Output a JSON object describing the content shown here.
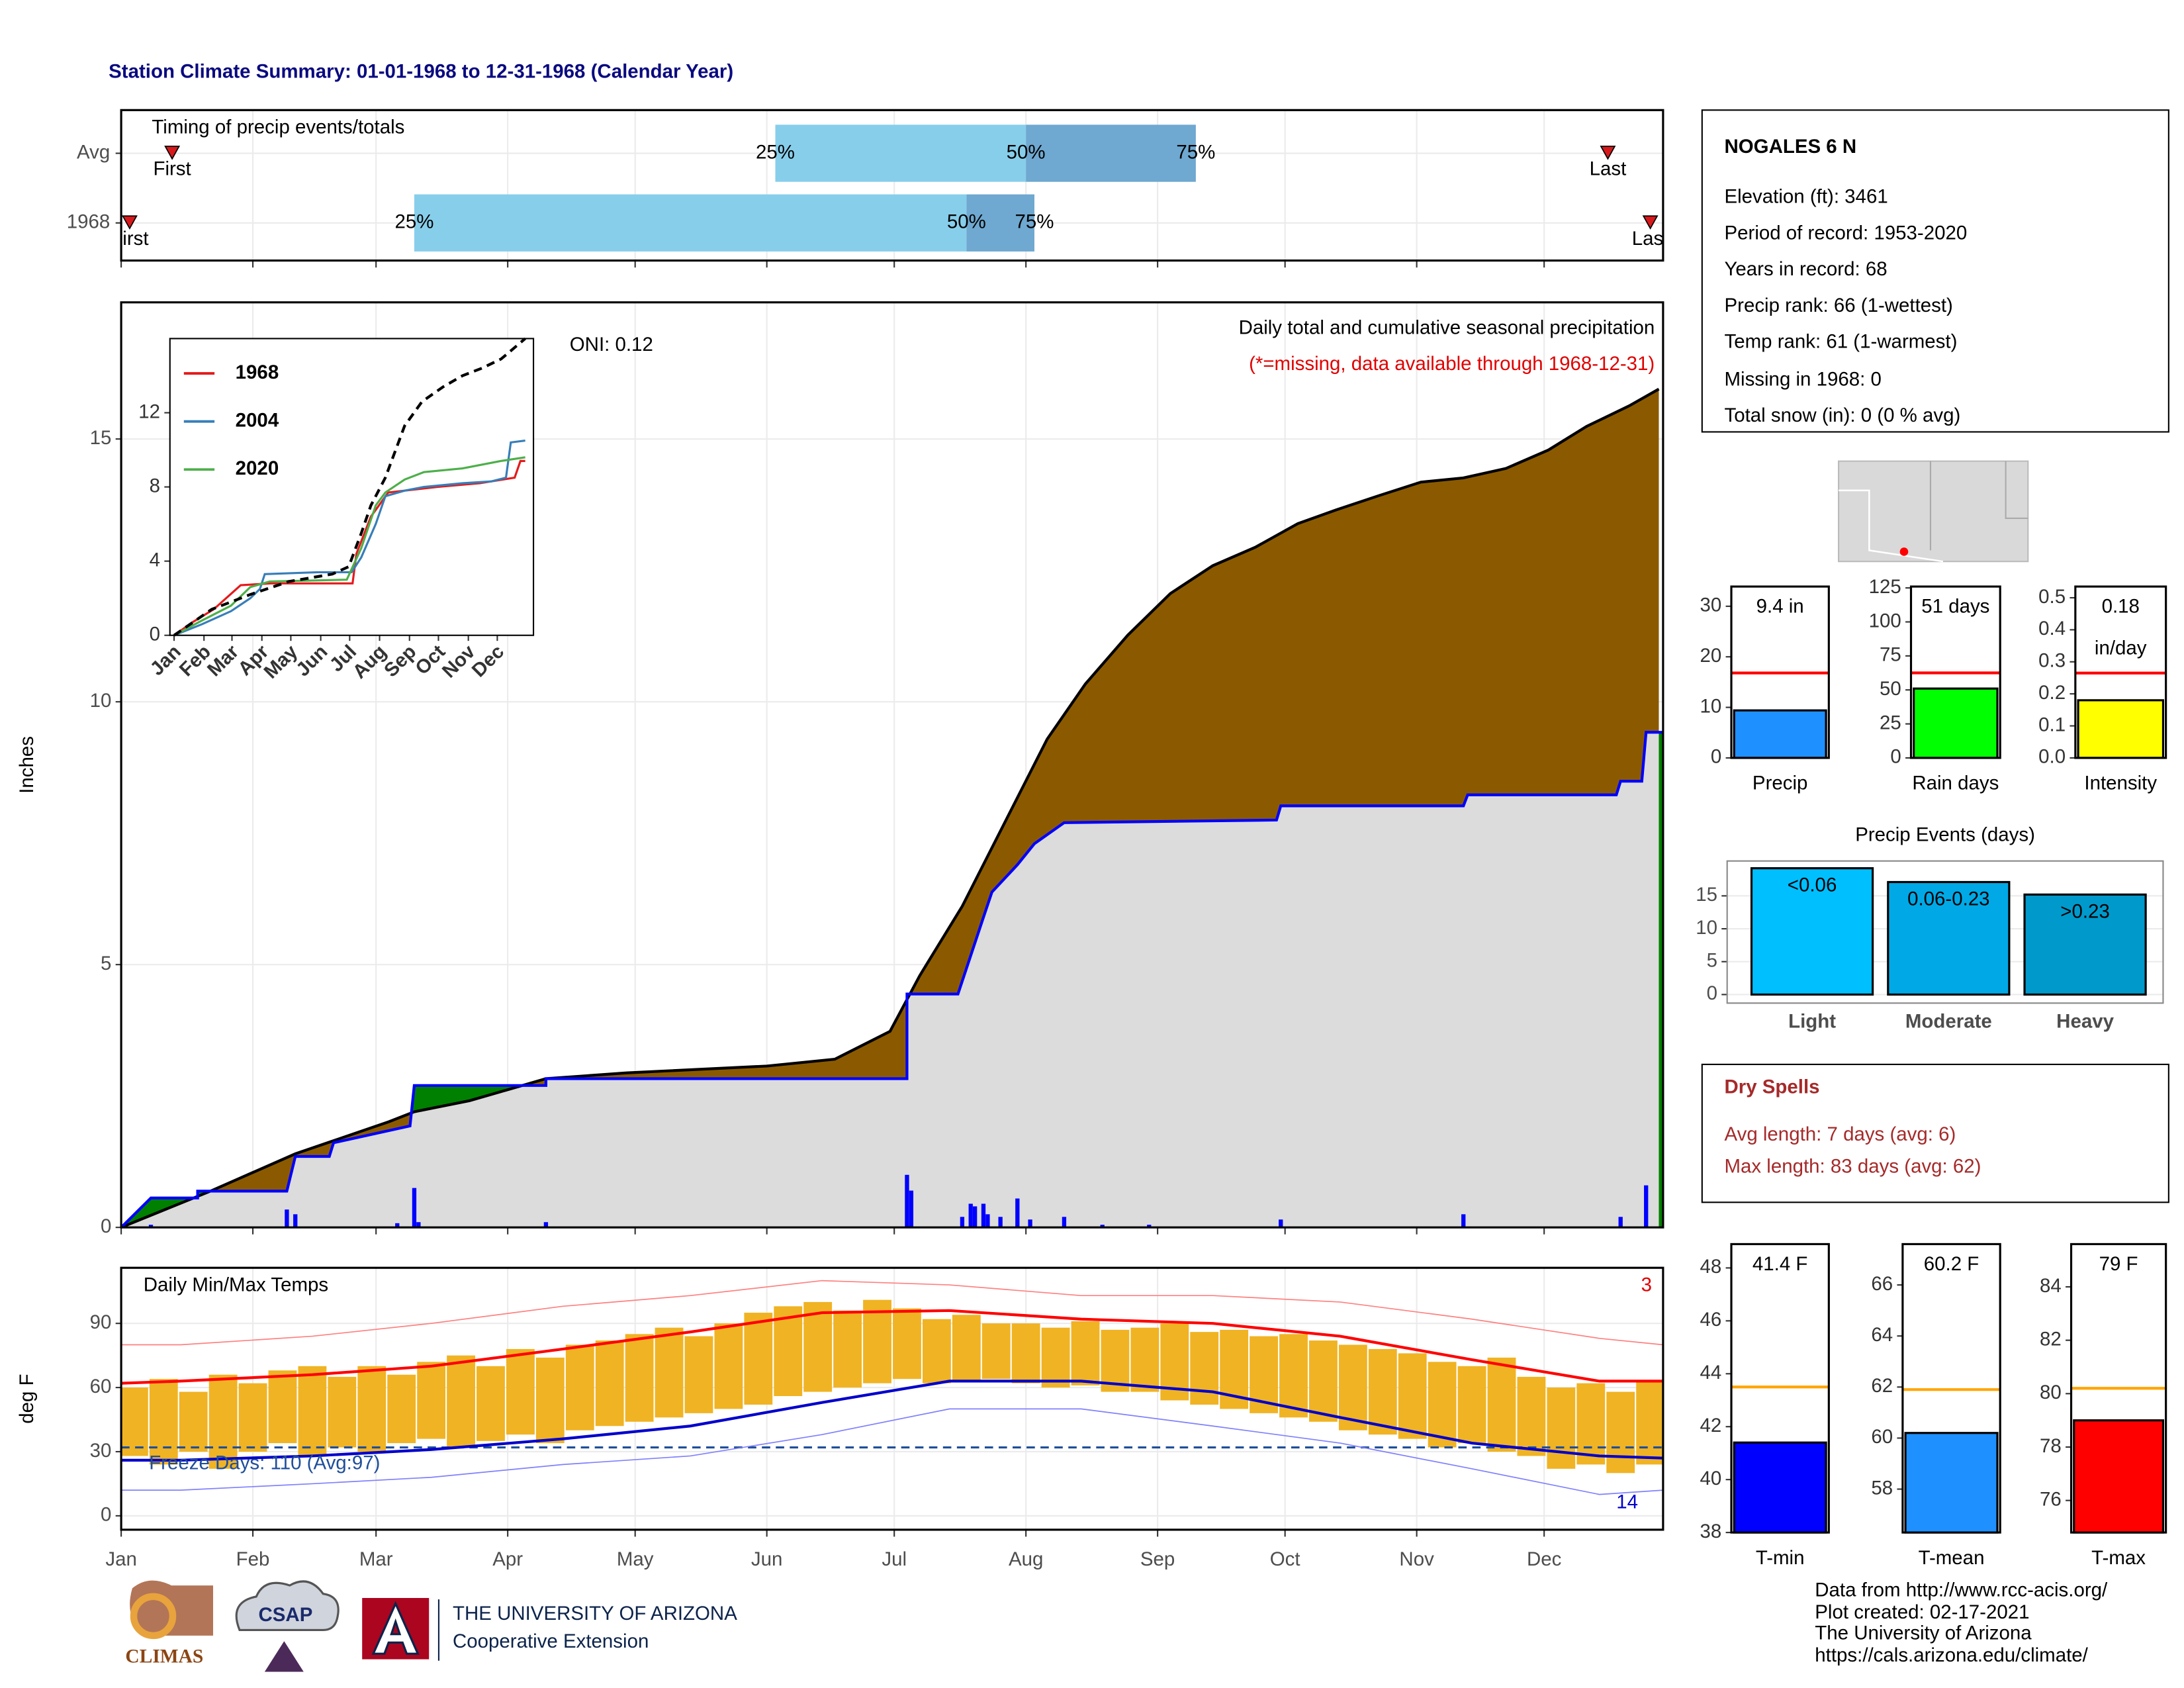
{
  "title": "Station Climate Summary: 01-01-1968 to 12-31-1968 (Calendar Year)",
  "station": {
    "name": "NOGALES 6 N",
    "lines": [
      "Elevation (ft): 3461",
      "Period of record: 1953-2020",
      "Years in record: 68",
      "Precip rank: 66 (1-wettest)",
      "Temp rank: 61 (1-warmest)",
      "Missing in 1968: 0",
      "Total snow (in): 0 (0 % avg)"
    ]
  },
  "dry_spells": {
    "title": "Dry Spells",
    "lines": [
      "Avg length: 7 days (avg: 6)",
      "Max length: 83 days (avg: 62)"
    ]
  },
  "footer": [
    "Data from http://www.rcc-acis.org/",
    "Plot created: 02-17-2021",
    "The University of Arizona",
    "https://cals.arizona.edu/climate/"
  ],
  "logos": {
    "climas": "CLIMAS",
    "csap": "CSAP",
    "university": "THE UNIVERSITY OF ARIZONA",
    "extension": "Cooperative Extension"
  },
  "chart_data": [
    {
      "type": "timing",
      "title": "Timing of precip events/totals",
      "rows": [
        "Avg",
        "1968"
      ],
      "first": [
        13,
        3
      ],
      "p25": [
        155,
        70
      ],
      "p50": [
        214,
        200
      ],
      "p75": [
        254,
        216
      ],
      "last": [
        351,
        361
      ],
      "labels": {
        "first": "First",
        "p25": "25%",
        "p50": "50%",
        "p75": "75%",
        "last": "Last"
      },
      "colors": {
        "p25": "#87ceeb",
        "p50": "#6fa8d0",
        "marker": "#d7191c"
      },
      "xlim": [
        1,
        364
      ],
      "grid": true
    },
    {
      "type": "area",
      "title": "Daily total and cumulative seasonal precipitation",
      "subtitle": "(*=missing, data available through 1968-12-31)",
      "annotation": "ONI: 0.12",
      "y_label": "Inches",
      "xlim": [
        1,
        364
      ],
      "ylim": [
        0,
        17.6
      ],
      "yticks": [
        0,
        5,
        10,
        15
      ],
      "grid": true,
      "series": [
        {
          "color": "#000000",
          "fill": "#8b5a00",
          "x": [
            1,
            22,
            42,
            64,
            70,
            83,
            101,
            120,
            153,
            169,
            182,
            189,
            199,
            209,
            219,
            228,
            238,
            248,
            258,
            268,
            278,
            287,
            297,
            307,
            317,
            327,
            337,
            346,
            356,
            363
          ],
          "values": [
            0,
            0.69,
            1.4,
            2.01,
            2.2,
            2.41,
            2.83,
            2.94,
            3.07,
            3.2,
            3.73,
            4.79,
            6.11,
            7.7,
            9.29,
            10.34,
            11.27,
            12.06,
            12.59,
            12.94,
            13.39,
            13.65,
            13.92,
            14.18,
            14.26,
            14.44,
            14.79,
            15.24,
            15.63,
            15.95
          ]
        },
        {
          "color": "#0000ff",
          "fill": "#dcdcdc",
          "above_fill": "#008000",
          "x": [
            1,
            8,
            19,
            19,
            40,
            42,
            50,
            51,
            69,
            70,
            101,
            101,
            186,
            186,
            198,
            204,
            206,
            212,
            216,
            223,
            273,
            274,
            317,
            318,
            353,
            354,
            359,
            360,
            364
          ],
          "values": [
            0,
            0.56,
            0.56,
            0.69,
            0.69,
            1.35,
            1.35,
            1.61,
            1.93,
            2.7,
            2.7,
            2.83,
            2.83,
            4.44,
            4.44,
            5.9,
            6.38,
            6.9,
            7.3,
            7.7,
            7.75,
            8.02,
            8.02,
            8.23,
            8.23,
            8.49,
            8.49,
            9.42,
            9.42
          ]
        }
      ],
      "daily": {
        "color": "#0000ff",
        "x": [
          8,
          40,
          42,
          66,
          70,
          71,
          101,
          186,
          187,
          199,
          201,
          202,
          204,
          205,
          208,
          212,
          215,
          223,
          232,
          243,
          274,
          317,
          354,
          360
        ],
        "values": [
          0.05,
          0.34,
          0.25,
          0.08,
          0.75,
          0.1,
          0.1,
          1.0,
          0.7,
          0.2,
          0.45,
          0.4,
          0.45,
          0.25,
          0.2,
          0.55,
          0.15,
          0.2,
          0.05,
          0.05,
          0.15,
          0.25,
          0.2,
          0.8
        ]
      }
    },
    {
      "type": "line",
      "xlim": [
        -3.3,
        373.5
      ],
      "ylim": [
        0,
        16
      ],
      "yticks": [
        0,
        4,
        8,
        12
      ],
      "xticks": [
        {
          "value": 1,
          "label": "Jan"
        },
        {
          "value": 32,
          "label": "Feb"
        },
        {
          "value": 61,
          "label": "Mar"
        },
        {
          "value": 92,
          "label": "Apr"
        },
        {
          "value": 122,
          "label": "May"
        },
        {
          "value": 153,
          "label": "Jun"
        },
        {
          "value": 183,
          "label": "Jul"
        },
        {
          "value": 214,
          "label": "Aug"
        },
        {
          "value": 245,
          "label": "Sep"
        },
        {
          "value": 275,
          "label": "Oct"
        },
        {
          "value": 306,
          "label": "Nov"
        },
        {
          "value": 336,
          "label": "Dec"
        }
      ],
      "series": [
        {
          "name": "1968",
          "color": "#e41a1c",
          "x": [
            1,
            20,
            42,
            70,
            101,
            186,
            190,
            205,
            223,
            274,
            318,
            354,
            360,
            365
          ],
          "values": [
            0,
            0.7,
            1.4,
            2.7,
            2.8,
            2.8,
            4.4,
            6.4,
            7.7,
            8.0,
            8.2,
            8.5,
            9.4,
            9.4
          ]
        },
        {
          "name": "2004",
          "color": "#377eb8",
          "x": [
            1,
            30,
            60,
            80,
            90,
            95,
            150,
            185,
            195,
            210,
            220,
            240,
            260,
            300,
            330,
            345,
            350,
            365
          ],
          "values": [
            0,
            0.6,
            1.3,
            2.0,
            2.5,
            3.3,
            3.4,
            3.4,
            4.2,
            6.0,
            7.5,
            7.8,
            8.0,
            8.2,
            8.3,
            8.5,
            10.4,
            10.5
          ]
        },
        {
          "name": "2020",
          "color": "#4daf4a",
          "x": [
            1,
            30,
            60,
            80,
            100,
            180,
            195,
            210,
            220,
            240,
            260,
            300,
            340,
            365
          ],
          "values": [
            0,
            0.8,
            1.6,
            2.6,
            2.9,
            3.0,
            4.7,
            7.0,
            7.7,
            8.4,
            8.8,
            9.0,
            9.4,
            9.6
          ]
        },
        {
          "color": "#000000",
          "dash": true,
          "x": [
            1,
            40,
            80,
            120,
            165,
            182,
            195,
            205,
            220,
            240,
            258,
            280,
            300,
            320,
            340,
            365
          ],
          "values": [
            0,
            1.4,
            2.2,
            2.9,
            3.3,
            3.7,
            5.5,
            7.0,
            8.5,
            11.3,
            12.6,
            13.4,
            14.0,
            14.4,
            14.9,
            16.0
          ]
        }
      ]
    },
    {
      "type": "temperature",
      "title": "Daily Min/Max Temps",
      "y_label": "deg F",
      "count_high": "3",
      "count_low": "14",
      "freeze_text": "Freeze Days: 110 (Avg:97)",
      "freeze_line": 32,
      "freeze_color": "#1f4e9a",
      "xlim": [
        1,
        364
      ],
      "ylim": [
        -6.5,
        116
      ],
      "yticks": [
        0,
        30,
        60,
        90
      ],
      "grid": true,
      "xticks": [
        {
          "value": 1,
          "label": "Jan"
        },
        {
          "value": 32,
          "label": "Feb"
        },
        {
          "value": 61,
          "label": "Mar"
        },
        {
          "value": 92,
          "label": "Apr"
        },
        {
          "value": 122,
          "label": "May"
        },
        {
          "value": 153,
          "label": "Jun"
        },
        {
          "value": 183,
          "label": "Jul"
        },
        {
          "value": 214,
          "label": "Aug"
        },
        {
          "value": 245,
          "label": "Sep"
        },
        {
          "value": 275,
          "label": "Oct"
        },
        {
          "value": 306,
          "label": "Nov"
        },
        {
          "value": 336,
          "label": "Dec"
        }
      ],
      "ranges": {
        "color": "#f0b323",
        "x": [
          4,
          11,
          18,
          25,
          32,
          39,
          46,
          53,
          60,
          67,
          74,
          81,
          88,
          95,
          102,
          109,
          116,
          123,
          130,
          137,
          144,
          151,
          158,
          165,
          172,
          179,
          186,
          193,
          200,
          207,
          214,
          221,
          228,
          235,
          242,
          249,
          256,
          263,
          270,
          277,
          284,
          291,
          298,
          305,
          312,
          319,
          326,
          333,
          340,
          347,
          354,
          361
        ],
        "high": [
          60,
          64,
          58,
          66,
          62,
          68,
          70,
          65,
          70,
          66,
          72,
          75,
          70,
          78,
          74,
          80,
          82,
          85,
          88,
          84,
          90,
          95,
          98,
          100,
          96,
          101,
          97,
          92,
          94,
          90,
          90,
          88,
          91,
          87,
          88,
          90,
          86,
          87,
          84,
          85,
          82,
          80,
          78,
          76,
          72,
          70,
          74,
          65,
          60,
          62,
          58,
          63
        ],
        "low": [
          28,
          24,
          30,
          22,
          30,
          34,
          28,
          32,
          30,
          34,
          36,
          32,
          35,
          38,
          34,
          40,
          42,
          44,
          46,
          48,
          50,
          52,
          56,
          58,
          60,
          62,
          64,
          62,
          63,
          64,
          62,
          60,
          61,
          58,
          58,
          54,
          52,
          50,
          48,
          46,
          44,
          40,
          38,
          36,
          32,
          34,
          30,
          28,
          22,
          24,
          20,
          24
        ]
      },
      "series": [
        {
          "color": "#ff0000",
          "width": 2,
          "x": [
            1,
            15,
            46,
            74,
            105,
            135,
            166,
            196,
            227,
            258,
            288,
            319,
            349,
            364
          ],
          "values": [
            62,
            63,
            66,
            70,
            78,
            86,
            95,
            96,
            92,
            90,
            84,
            73,
            63,
            63
          ]
        },
        {
          "color": "#0000cc",
          "width": 2,
          "x": [
            1,
            15,
            46,
            74,
            105,
            135,
            166,
            196,
            227,
            258,
            288,
            319,
            349,
            364
          ],
          "values": [
            26,
            26,
            28,
            31,
            36,
            42,
            53,
            63,
            63,
            58,
            46,
            34,
            28,
            27
          ]
        },
        {
          "color": "#ff8080",
          "width": 0.8,
          "x": [
            1,
            15,
            46,
            74,
            105,
            135,
            166,
            196,
            227,
            258,
            288,
            319,
            349,
            364
          ],
          "values": [
            80,
            80,
            84,
            90,
            98,
            103,
            110,
            108,
            103,
            103,
            100,
            92,
            83,
            80
          ]
        },
        {
          "color": "#8080ff",
          "width": 0.8,
          "x": [
            1,
            15,
            46,
            74,
            105,
            135,
            166,
            196,
            227,
            258,
            288,
            319,
            349,
            364
          ],
          "values": [
            12,
            12,
            15,
            18,
            24,
            28,
            38,
            50,
            50,
            42,
            34,
            22,
            10,
            12
          ]
        }
      ]
    },
    {
      "type": "gauge",
      "categories": [
        "Precip"
      ],
      "values": [
        9.4
      ],
      "value_labels": [
        "9.4 in"
      ],
      "average": 16.8,
      "average_color": "#ff0000",
      "color": "#1e90ff",
      "ylim": [
        0,
        33.9
      ],
      "yticks": [
        0,
        10,
        20,
        30
      ]
    },
    {
      "type": "gauge",
      "categories": [
        "Rain days"
      ],
      "values": [
        51
      ],
      "value_labels": [
        "51 days"
      ],
      "average": 62.5,
      "average_color": "#ff0000",
      "color": "#00ff00",
      "ylim": [
        0,
        126
      ],
      "yticks": [
        0,
        25,
        50,
        75,
        100,
        125
      ]
    },
    {
      "type": "gauge",
      "categories": [
        "Intensity"
      ],
      "values": [
        0.18
      ],
      "value_labels": [
        "0.18"
      ],
      "unit_label": "in/day",
      "average": 0.265,
      "average_color": "#ff0000",
      "color": "#ffff00",
      "ylim": [
        0,
        0.535
      ],
      "yticks": [
        {
          "value": 0,
          "label": "0.0"
        },
        0.1,
        0.2,
        0.3,
        0.4,
        0.5
      ]
    },
    {
      "type": "bar",
      "title": "Precip Events (days)",
      "categories": [
        "Light",
        "Moderate",
        "Heavy"
      ],
      "values": [
        19.2,
        17.1,
        15.2
      ],
      "bar_labels": [
        "<0.06",
        "0.06-0.23",
        ">0.23"
      ],
      "colors": [
        "#00bfff",
        "#00a9e6",
        "#0099cc"
      ],
      "ylim": [
        -1.3,
        20.3
      ],
      "yticks": [
        0,
        5,
        10,
        15
      ],
      "grid": true
    },
    {
      "type": "gauge",
      "categories": [
        "T-min"
      ],
      "values": [
        41.4
      ],
      "value_labels": [
        "41.4 F"
      ],
      "average": 43.5,
      "average_color": "#ffa500",
      "color": "#0000ff",
      "ylim": [
        38,
        48.9
      ],
      "yticks": [
        38,
        40,
        42,
        44,
        46,
        48
      ]
    },
    {
      "type": "gauge",
      "categories": [
        "T-mean"
      ],
      "values": [
        60.2
      ],
      "value_labels": [
        "60.2 F"
      ],
      "average": 61.9,
      "average_color": "#ffa500",
      "color": "#1e90ff",
      "ylim": [
        56.3,
        67.6
      ],
      "yticks": [
        58,
        60,
        62,
        64,
        66
      ]
    },
    {
      "type": "gauge",
      "categories": [
        "T-max"
      ],
      "values": [
        79
      ],
      "value_labels": [
        "79 F"
      ],
      "average": 80.2,
      "average_color": "#ffa500",
      "color": "#ff0000",
      "ylim": [
        74.8,
        85.6
      ],
      "yticks": [
        76,
        78,
        80,
        82,
        84
      ]
    }
  ]
}
